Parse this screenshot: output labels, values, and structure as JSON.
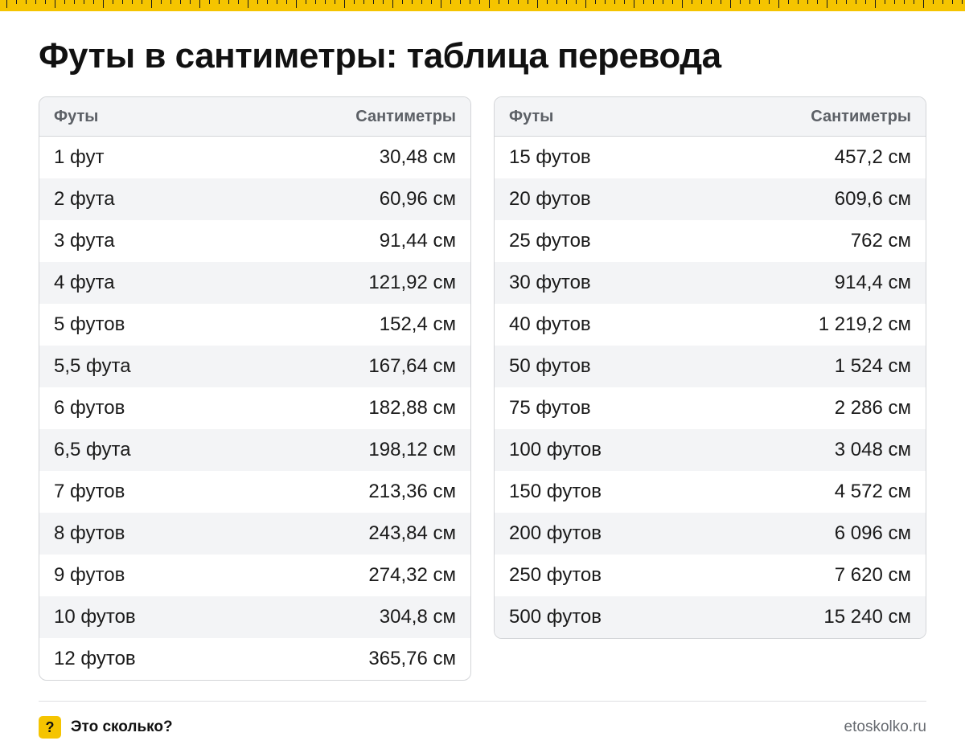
{
  "title": "Футы в сантиметры: таблица перевода",
  "colors": {
    "accent": "#f5c400",
    "border": "#d3d5d8",
    "stripe": "#f3f4f6"
  },
  "left_table": {
    "header": {
      "col1": "Футы",
      "col2": "Сантиметры"
    },
    "rows": [
      {
        "ft": "1 фут",
        "cm": "30,48 см"
      },
      {
        "ft": "2 фута",
        "cm": "60,96 см"
      },
      {
        "ft": "3 фута",
        "cm": "91,44 см"
      },
      {
        "ft": "4 фута",
        "cm": "121,92 см"
      },
      {
        "ft": "5 футов",
        "cm": "152,4 см"
      },
      {
        "ft": "5,5 фута",
        "cm": "167,64 см"
      },
      {
        "ft": "6 футов",
        "cm": "182,88 см"
      },
      {
        "ft": "6,5 фута",
        "cm": "198,12 см"
      },
      {
        "ft": "7 футов",
        "cm": "213,36 см"
      },
      {
        "ft": "8 футов",
        "cm": "243,84 см"
      },
      {
        "ft": "9 футов",
        "cm": "274,32 см"
      },
      {
        "ft": "10 футов",
        "cm": "304,8 см"
      },
      {
        "ft": "12 футов",
        "cm": "365,76 см"
      }
    ]
  },
  "right_table": {
    "header": {
      "col1": "Футы",
      "col2": "Сантиметры"
    },
    "rows": [
      {
        "ft": "15 футов",
        "cm": "457,2 см"
      },
      {
        "ft": "20 футов",
        "cm": "609,6 см"
      },
      {
        "ft": "25 футов",
        "cm": "762 см"
      },
      {
        "ft": "30 футов",
        "cm": "914,4 см"
      },
      {
        "ft": "40 футов",
        "cm": "1 219,2 см"
      },
      {
        "ft": "50 футов",
        "cm": "1 524 см"
      },
      {
        "ft": "75 футов",
        "cm": "2 286 см"
      },
      {
        "ft": "100 футов",
        "cm": "3 048 см"
      },
      {
        "ft": "150 футов",
        "cm": "4 572 см"
      },
      {
        "ft": "200 футов",
        "cm": "6 096 см"
      },
      {
        "ft": "250 футов",
        "cm": "7 620 см"
      },
      {
        "ft": "500 футов",
        "cm": "15 240 см"
      }
    ]
  },
  "footer": {
    "badge": "?",
    "badge_icon": "question-icon",
    "brand": "Это сколько?",
    "site": "etoskolko.ru"
  }
}
